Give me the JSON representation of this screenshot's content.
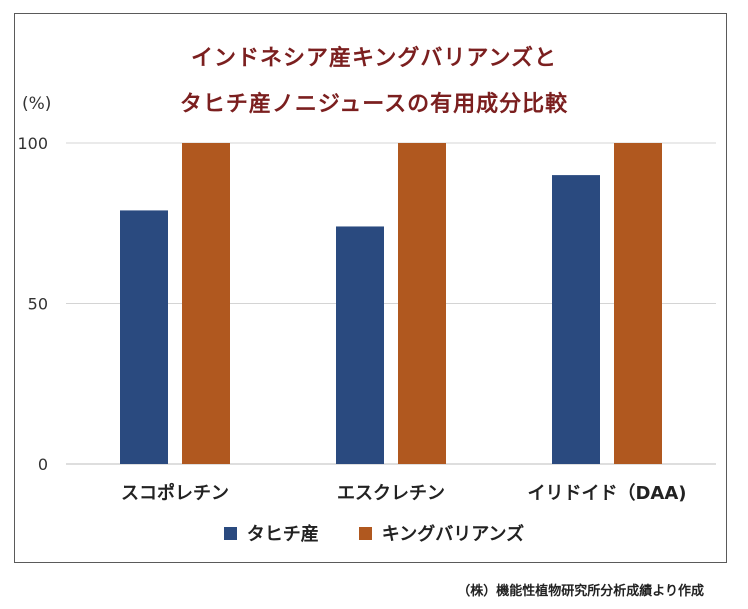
{
  "chart_data": {
    "type": "bar",
    "title_line1": "インドネシア産キングバリアンズと",
    "title_line2": "タヒチ産ノニジュースの有用成分比較",
    "ylabel": "(%)",
    "categories": [
      "スコポレチン",
      "エスクレチン",
      "イリドイド（DAA)"
    ],
    "series": [
      {
        "name": "タヒチ産",
        "color": "#2a4a7f",
        "values": [
          79,
          74,
          90
        ]
      },
      {
        "name": "キングバリアンズ",
        "color": "#b0581f",
        "values": [
          100,
          100,
          100
        ]
      }
    ],
    "yticks": [
      "0",
      "50",
      "100"
    ],
    "ylim": [
      0,
      100
    ],
    "grid": true,
    "legend_position": "bottom",
    "source": "（株）機能性植物研究所分析成績より作成"
  }
}
